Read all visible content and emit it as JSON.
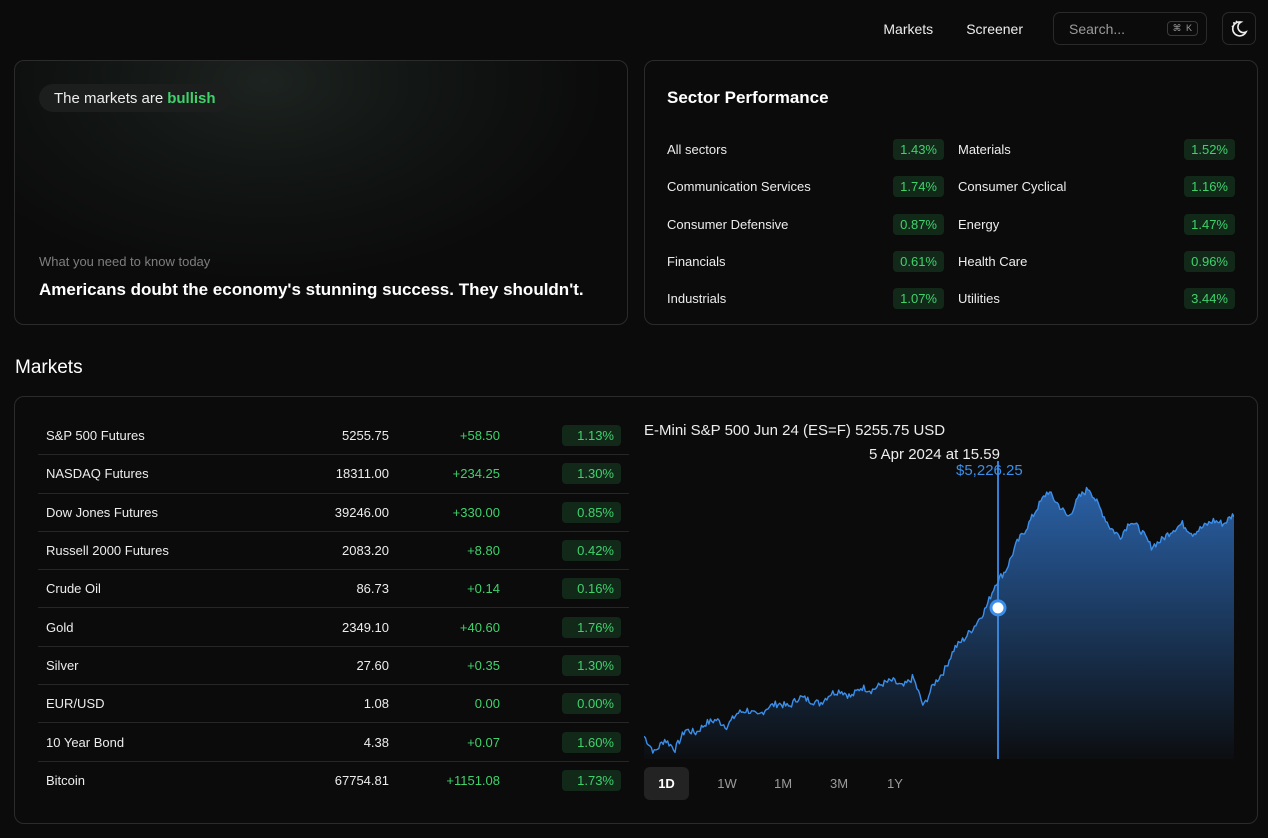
{
  "nav": {
    "links": [
      "Markets",
      "Screener"
    ],
    "search_placeholder": "Search...",
    "search_shortcut": "⌘ K",
    "theme_icon": "moon-sun-toggle-icon"
  },
  "hero": {
    "prefix": "The markets are",
    "sentiment": "bullish",
    "sub": "What you need to know today",
    "headline": "Americans doubt the economy's stunning success. They shouldn't."
  },
  "sector_performance": {
    "title": "Sector Performance",
    "left": [
      {
        "name": "All sectors",
        "pct": "1.43%"
      },
      {
        "name": "Communication Services",
        "pct": "1.74%"
      },
      {
        "name": "Consumer Defensive",
        "pct": "0.87%"
      },
      {
        "name": "Financials",
        "pct": "0.61%"
      },
      {
        "name": "Industrials",
        "pct": "1.07%"
      }
    ],
    "right": [
      {
        "name": "Materials",
        "pct": "1.52%"
      },
      {
        "name": "Consumer Cyclical",
        "pct": "1.16%"
      },
      {
        "name": "Energy",
        "pct": "1.47%"
      },
      {
        "name": "Health Care",
        "pct": "0.96%"
      },
      {
        "name": "Utilities",
        "pct": "3.44%"
      }
    ]
  },
  "markets": {
    "title": "Markets",
    "rows": [
      {
        "name": "S&P 500 Futures",
        "price": "5255.75",
        "change": "+58.50",
        "pct": "1.13%"
      },
      {
        "name": "NASDAQ Futures",
        "price": "18311.00",
        "change": "+234.25",
        "pct": "1.30%"
      },
      {
        "name": "Dow Jones Futures",
        "price": "39246.00",
        "change": "+330.00",
        "pct": "0.85%"
      },
      {
        "name": "Russell 2000 Futures",
        "price": "2083.20",
        "change": "+8.80",
        "pct": "0.42%"
      },
      {
        "name": "Crude Oil",
        "price": "86.73",
        "change": "+0.14",
        "pct": "0.16%"
      },
      {
        "name": "Gold",
        "price": "2349.10",
        "change": "+40.60",
        "pct": "1.76%"
      },
      {
        "name": "Silver",
        "price": "27.60",
        "change": "+0.35",
        "pct": "1.30%"
      },
      {
        "name": "EUR/USD",
        "price": "1.08",
        "change": "0.00",
        "pct": "0.00%"
      },
      {
        "name": "10 Year Bond",
        "price": "4.38",
        "change": "+0.07",
        "pct": "1.60%"
      },
      {
        "name": "Bitcoin",
        "price": "67754.81",
        "change": "+1151.08",
        "pct": "1.73%"
      }
    ]
  },
  "chart": {
    "title": "E-Mini S&P 500 Jun 24 (ES=F) 5255.75 USD",
    "hover_date": "5 Apr 2024 at 15.59",
    "hover_price": "$5,226.25",
    "ranges": [
      "1D",
      "1W",
      "1M",
      "3M",
      "1Y"
    ],
    "active_range": "1D",
    "line_color": "#3b8eea"
  },
  "chart_data": {
    "type": "area",
    "title": "E-Mini S&P 500 Jun 24 (ES=F) 5255.75 USD",
    "xlabel": "",
    "ylabel": "",
    "x_marked": "5 Apr 2024 at 15.59",
    "marked_value": 5226.25,
    "last_value": 5255.75,
    "ylim": [
      5180,
      5270
    ],
    "series": [
      {
        "values": [
          5187,
          5182,
          5186,
          5183,
          5189,
          5188,
          5191,
          5192,
          5190,
          5194,
          5195,
          5193,
          5196,
          5197,
          5196,
          5199,
          5198,
          5197,
          5200,
          5201,
          5199,
          5202,
          5201,
          5203,
          5204,
          5202,
          5205,
          5196,
          5203,
          5207,
          5214,
          5217,
          5221,
          5226,
          5234,
          5238,
          5246,
          5251,
          5257,
          5262,
          5258,
          5254,
          5260,
          5263,
          5257,
          5251,
          5248,
          5253,
          5250,
          5245,
          5247,
          5250,
          5252,
          5249,
          5251,
          5253,
          5252,
          5255
        ]
      }
    ]
  }
}
